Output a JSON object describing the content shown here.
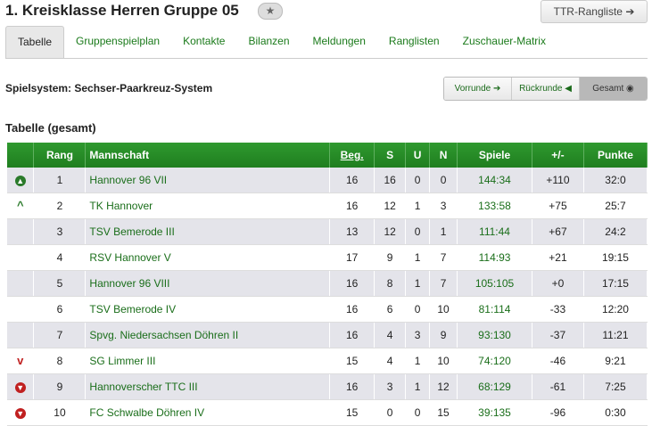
{
  "header": {
    "title": "1. Kreisklasse Herren Gruppe 05",
    "ttr_button": "TTR-Rangliste"
  },
  "tabs": [
    "Tabelle",
    "Gruppenspielplan",
    "Kontakte",
    "Bilanzen",
    "Meldungen",
    "Ranglisten",
    "Zuschauer-Matrix"
  ],
  "system": "Spielsystem: Sechser-Paarkreuz-System",
  "round_buttons": [
    "Vorrunde",
    "Rückrunde",
    "Gesamt"
  ],
  "table": {
    "title": "Tabelle (gesamt)",
    "columns": [
      "Rang",
      "Mannschaft",
      "Beg.",
      "S",
      "U",
      "N",
      "Spiele",
      "+/-",
      "Punkte"
    ],
    "rows": [
      [
        "1",
        "Hannover 96 VII",
        "16",
        "16",
        "0",
        "0",
        "144:34",
        "+110",
        "32:0"
      ],
      [
        "2",
        "TK Hannover",
        "16",
        "12",
        "1",
        "3",
        "133:58",
        "+75",
        "25:7"
      ],
      [
        "3",
        "TSV Bemerode III",
        "13",
        "12",
        "0",
        "1",
        "111:44",
        "+67",
        "24:2"
      ],
      [
        "4",
        "RSV Hannover V",
        "17",
        "9",
        "1",
        "7",
        "114:93",
        "+21",
        "19:15"
      ],
      [
        "5",
        "Hannover 96 VIII",
        "16",
        "8",
        "1",
        "7",
        "105:105",
        "+0",
        "17:15"
      ],
      [
        "6",
        "TSV Bemerode IV",
        "16",
        "6",
        "0",
        "10",
        "81:114",
        "-33",
        "12:20"
      ],
      [
        "7",
        "Spvg. Niedersachsen Döhren II",
        "16",
        "4",
        "3",
        "9",
        "93:130",
        "-37",
        "11:21"
      ],
      [
        "8",
        "SG Limmer III",
        "15",
        "4",
        "1",
        "10",
        "74:120",
        "-46",
        "9:21"
      ],
      [
        "9",
        "Hannoverscher TTC III",
        "16",
        "3",
        "1",
        "12",
        "68:129",
        "-61",
        "7:25"
      ],
      [
        "10",
        "FC Schwalbe Döhren IV",
        "15",
        "0",
        "0",
        "15",
        "39:135",
        "-96",
        "0:30"
      ]
    ]
  }
}
